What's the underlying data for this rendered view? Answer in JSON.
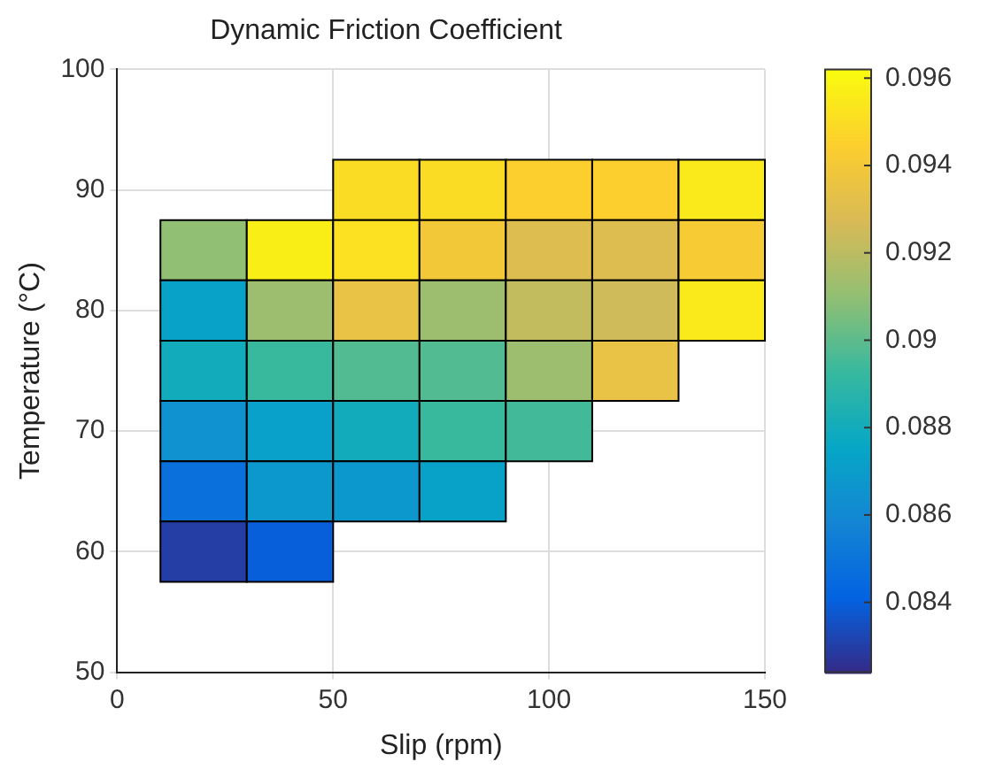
{
  "chart_data": {
    "type": "heatmap",
    "title": "Dynamic Friction Coefficient",
    "xlabel": "Slip (rpm)",
    "ylabel": "Temperature (°C)",
    "x": [
      20,
      40,
      60,
      80,
      100,
      120,
      140
    ],
    "y": [
      90,
      85,
      80,
      75,
      70,
      65,
      60
    ],
    "xlim": [
      0,
      150
    ],
    "xticks": [
      0,
      50,
      100,
      150
    ],
    "ylim": [
      50,
      100
    ],
    "yticks": [
      50,
      60,
      70,
      80,
      90,
      100
    ],
    "cells": [
      [
        null,
        null,
        0.095,
        0.095,
        0.0945,
        0.0945,
        0.0955
      ],
      [
        0.091,
        0.0957,
        0.0952,
        0.094,
        0.093,
        0.093,
        0.0942
      ],
      [
        0.0873,
        0.0913,
        0.0935,
        0.0913,
        0.0922,
        0.0925,
        0.0955
      ],
      [
        0.088,
        0.0893,
        0.0898,
        0.0898,
        0.0913,
        0.0935,
        null
      ],
      [
        0.0865,
        0.0872,
        0.088,
        0.0893,
        0.0895,
        null,
        null
      ],
      [
        0.0848,
        0.0868,
        0.0868,
        0.0873,
        null,
        null,
        null
      ],
      [
        0.083,
        0.084,
        null,
        null,
        null,
        null,
        null
      ]
    ],
    "clim": [
      0.0824,
      0.0962
    ],
    "cticks": [
      0.084,
      0.086,
      0.088,
      0.09,
      0.092,
      0.094,
      0.096
    ],
    "grid": true
  }
}
